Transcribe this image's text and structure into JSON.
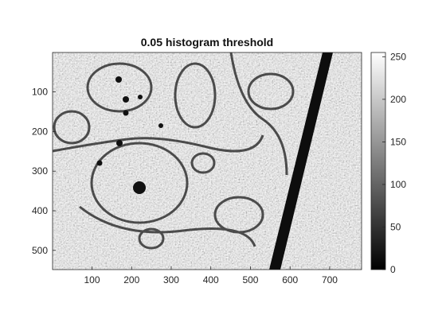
{
  "chart_data": {
    "type": "heatmap",
    "title": "0.05 histogram threshold",
    "xlabel": "",
    "ylabel": "",
    "image_size": {
      "width": 780,
      "height": 548
    },
    "x_ticks": [
      100,
      200,
      300,
      400,
      500,
      600,
      700
    ],
    "y_ticks": [
      100,
      200,
      300,
      400,
      500
    ],
    "colorbar": {
      "colormap": "gray",
      "range": [
        0,
        255
      ],
      "ticks": [
        0,
        50,
        100,
        150,
        200,
        250
      ]
    },
    "content": "grayscale electron micrograph of tissue after 0.05 histogram threshold"
  }
}
